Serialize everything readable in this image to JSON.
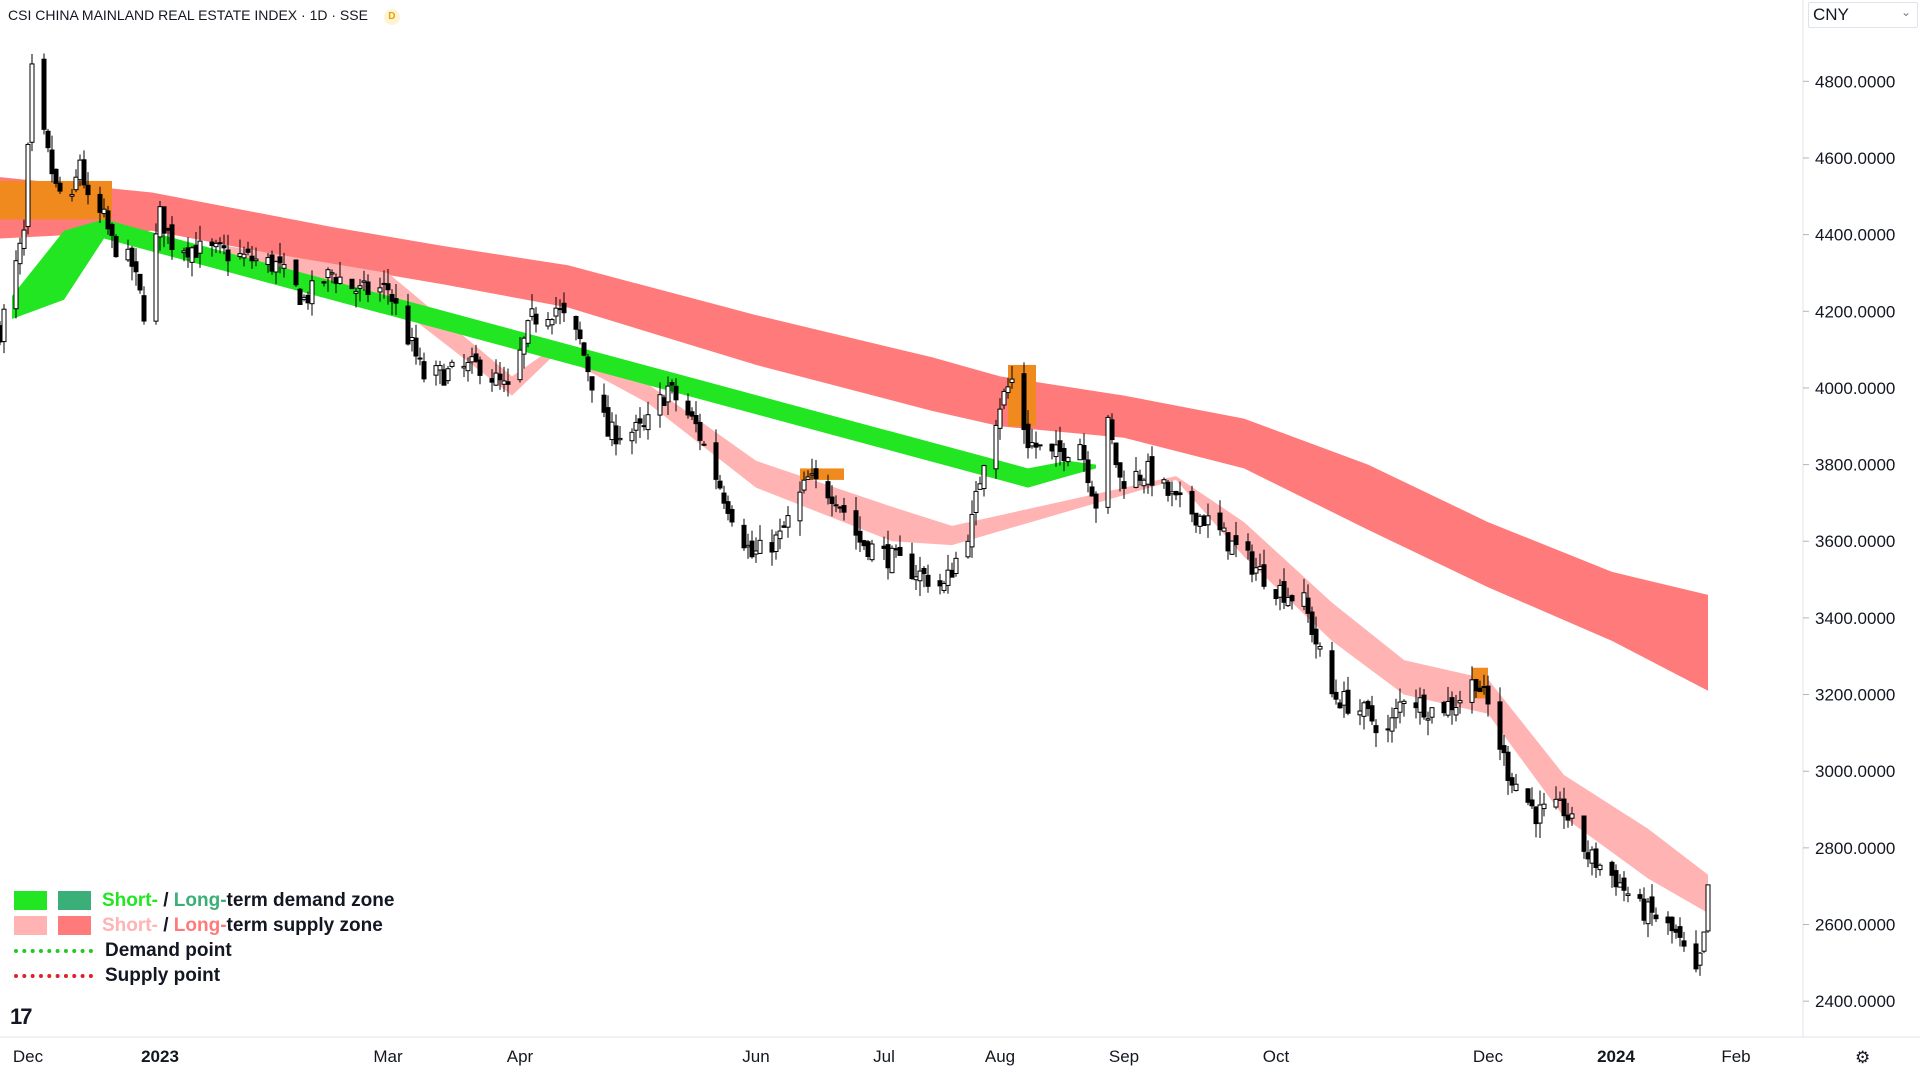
{
  "header": {
    "title": "CSI CHINA MAINLAND REAL ESTATE INDEX · 1D · SSE",
    "badge": "D"
  },
  "currency": {
    "selected": "CNY"
  },
  "colors": {
    "short_demand": "#22e622",
    "long_demand": "#3aaf78",
    "short_supply": "#ffb3b3",
    "long_supply": "#ff7a7a",
    "overlap_zone": "#f08a1e",
    "demand_point": "#22c922",
    "supply_point": "#e0202a",
    "candle": "#000000"
  },
  "legend": {
    "demand_zone": {
      "short": "Short-",
      "sep": " / ",
      "long": "Long-",
      "rest": "term demand zone"
    },
    "supply_zone": {
      "short": "Short-",
      "sep": " / ",
      "long": "Long-",
      "rest": "term supply zone"
    },
    "demand_point": "Demand point",
    "supply_point": "Supply point"
  },
  "logo": "17",
  "icons": {
    "settings": "settings-icon",
    "logo": "tradingview-logo-icon"
  },
  "chart_data": {
    "type": "candlestick",
    "title": "CSI CHINA MAINLAND REAL ESTATE INDEX",
    "ylim": [
      2330,
      4960
    ],
    "y_ticks": [
      "2400.0000",
      "2600.0000",
      "2800.0000",
      "3000.0000",
      "3200.0000",
      "3400.0000",
      "3600.0000",
      "3800.0000",
      "4000.0000",
      "4200.0000",
      "4400.0000",
      "4600.0000",
      "4800.0000"
    ],
    "y_tick_values": [
      2400,
      2600,
      2800,
      3000,
      3200,
      3400,
      3600,
      3800,
      4000,
      4200,
      4400,
      4600,
      4800
    ],
    "x_range": [
      "2022-11-24",
      "2024-02-17"
    ],
    "x_ticks": [
      {
        "label": "Dec",
        "date": "2022-12-01"
      },
      {
        "label": "2023",
        "date": "2023-01-03"
      },
      {
        "label": "Mar",
        "date": "2023-03-01"
      },
      {
        "label": "Apr",
        "date": "2023-04-03"
      },
      {
        "label": "Jun",
        "date": "2023-06-01"
      },
      {
        "label": "Jul",
        "date": "2023-07-03"
      },
      {
        "label": "Aug",
        "date": "2023-08-01"
      },
      {
        "label": "Sep",
        "date": "2023-09-01"
      },
      {
        "label": "Oct",
        "date": "2023-10-09"
      },
      {
        "label": "Dec",
        "date": "2023-12-01"
      },
      {
        "label": "2024",
        "date": "2024-01-02"
      },
      {
        "label": "Feb",
        "date": "2024-02-01"
      }
    ],
    "price_path": [
      [
        "2022-11-24",
        4150
      ],
      [
        "2022-11-30",
        4400
      ],
      [
        "2022-12-02",
        4820
      ],
      [
        "2022-12-05",
        4650
      ],
      [
        "2022-12-08",
        4520
      ],
      [
        "2022-12-12",
        4480
      ],
      [
        "2022-12-14",
        4600
      ],
      [
        "2022-12-16",
        4480
      ],
      [
        "2022-12-20",
        4440
      ],
      [
        "2022-12-22",
        4380
      ],
      [
        "2022-12-27",
        4320
      ],
      [
        "2022-12-30",
        4200
      ],
      [
        "2023-01-03",
        4450
      ],
      [
        "2023-01-06",
        4380
      ],
      [
        "2023-01-13",
        4360
      ],
      [
        "2023-01-20",
        4350
      ],
      [
        "2023-02-01",
        4320
      ],
      [
        "2023-02-08",
        4230
      ],
      [
        "2023-02-15",
        4300
      ],
      [
        "2023-02-22",
        4250
      ],
      [
        "2023-03-01",
        4260
      ],
      [
        "2023-03-10",
        4030
      ],
      [
        "2023-03-17",
        4040
      ],
      [
        "2023-03-24",
        4060
      ],
      [
        "2023-03-31",
        3990
      ],
      [
        "2023-04-06",
        4180
      ],
      [
        "2023-04-12",
        4210
      ],
      [
        "2023-04-18",
        4120
      ],
      [
        "2023-04-25",
        3880
      ],
      [
        "2023-05-04",
        3890
      ],
      [
        "2023-05-10",
        4000
      ],
      [
        "2023-05-17",
        3900
      ],
      [
        "2023-05-24",
        3720
      ],
      [
        "2023-05-31",
        3560
      ],
      [
        "2023-06-07",
        3610
      ],
      [
        "2023-06-14",
        3760
      ],
      [
        "2023-06-21",
        3720
      ],
      [
        "2023-06-27",
        3600
      ],
      [
        "2023-07-04",
        3560
      ],
      [
        "2023-07-11",
        3520
      ],
      [
        "2023-07-18",
        3480
      ],
      [
        "2023-07-25",
        3650
      ],
      [
        "2023-07-28",
        3820
      ],
      [
        "2023-08-01",
        3960
      ],
      [
        "2023-08-04",
        4020
      ],
      [
        "2023-08-08",
        3860
      ],
      [
        "2023-08-14",
        3820
      ],
      [
        "2023-08-21",
        3860
      ],
      [
        "2023-08-25",
        3700
      ],
      [
        "2023-08-28",
        3900
      ],
      [
        "2023-08-31",
        3760
      ],
      [
        "2023-09-07",
        3780
      ],
      [
        "2023-09-14",
        3700
      ],
      [
        "2023-09-21",
        3660
      ],
      [
        "2023-09-28",
        3590
      ],
      [
        "2023-10-09",
        3480
      ],
      [
        "2023-10-16",
        3440
      ],
      [
        "2023-10-23",
        3200
      ],
      [
        "2023-10-30",
        3160
      ],
      [
        "2023-11-06",
        3100
      ],
      [
        "2023-11-10",
        3200
      ],
      [
        "2023-11-17",
        3160
      ],
      [
        "2023-11-23",
        3180
      ],
      [
        "2023-11-28",
        3240
      ],
      [
        "2023-12-01",
        3170
      ],
      [
        "2023-12-06",
        3000
      ],
      [
        "2023-12-13",
        2890
      ],
      [
        "2023-12-20",
        2900
      ],
      [
        "2023-12-26",
        2780
      ],
      [
        "2024-01-02",
        2720
      ],
      [
        "2024-01-08",
        2640
      ],
      [
        "2024-01-12",
        2620
      ],
      [
        "2024-01-17",
        2570
      ],
      [
        "2024-01-22",
        2460
      ],
      [
        "2024-01-24",
        2560
      ],
      [
        "2024-01-25",
        2700
      ]
    ],
    "long_supply_band": [
      [
        "2022-11-24",
        4550,
        4390
      ],
      [
        "2023-01-01",
        4510,
        4410
      ],
      [
        "2023-02-15",
        4420,
        4320
      ],
      [
        "2023-03-15",
        4370,
        4270
      ],
      [
        "2023-04-15",
        4320,
        4210
      ],
      [
        "2023-06-01",
        4190,
        4060
      ],
      [
        "2023-07-15",
        4080,
        3940
      ],
      [
        "2023-08-01",
        4030,
        3900
      ],
      [
        "2023-09-01",
        3980,
        3870
      ],
      [
        "2023-10-01",
        3920,
        3790
      ],
      [
        "2023-11-01",
        3800,
        3630
      ],
      [
        "2023-12-01",
        3650,
        3480
      ],
      [
        "2024-01-01",
        3520,
        3340
      ],
      [
        "2024-01-25",
        3460,
        3210
      ]
    ],
    "short_supply_band": [
      [
        "2023-01-20",
        4370,
        4350
      ],
      [
        "2023-03-01",
        4300,
        4230
      ],
      [
        "2023-04-01",
        4030,
        3980
      ],
      [
        "2023-04-12",
        4110,
        4090
      ],
      [
        "2023-05-05",
        4010,
        3960
      ],
      [
        "2023-06-01",
        3810,
        3740
      ],
      [
        "2023-07-05",
        3690,
        3600
      ],
      [
        "2023-07-20",
        3640,
        3590
      ],
      [
        "2023-09-14",
        3770,
        3760
      ],
      [
        "2023-10-01",
        3650,
        3560
      ],
      [
        "2023-10-23",
        3440,
        3340
      ],
      [
        "2023-11-10",
        3290,
        3200
      ],
      [
        "2023-12-01",
        3240,
        3150
      ],
      [
        "2023-12-20",
        2990,
        2880
      ],
      [
        "2024-01-10",
        2850,
        2720
      ],
      [
        "2024-01-25",
        2730,
        2630
      ]
    ],
    "short_demand_band": [
      [
        "2022-11-27",
        4240,
        4180
      ],
      [
        "2022-12-10",
        4410,
        4230
      ],
      [
        "2022-12-20",
        4440,
        4390
      ],
      [
        "2023-08-08",
        3790,
        3740
      ],
      [
        "2023-08-18",
        3810,
        3770
      ],
      [
        "2023-08-25",
        3800,
        3790
      ]
    ],
    "overlap_zones": [
      [
        "2022-11-24",
        "2022-12-22",
        4540,
        4440
      ],
      [
        "2023-08-03",
        "2023-08-10",
        4060,
        3900
      ],
      [
        "2023-06-12",
        "2023-06-23",
        3790,
        3760
      ],
      [
        "2023-11-27",
        "2023-12-01",
        3270,
        3190
      ]
    ]
  }
}
